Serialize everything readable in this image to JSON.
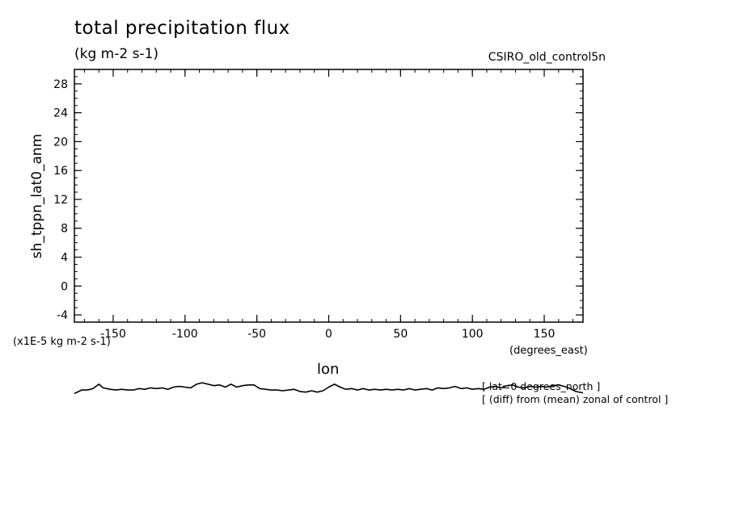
{
  "chart_data": {
    "type": "line",
    "title": "total precipitation flux",
    "units": "(kg m-2 s-1)",
    "dataset": "CSIRO_old_control5n",
    "ylabel": "sh_tppn_lat0_anm",
    "y_scale_note": "(x1E-5 kg m-2 s-1)",
    "xlabel": "lon",
    "x_units": "(degrees_east)",
    "notes": [
      "[ lat=0 degrees_north ]",
      "[ (diff) from (mean) zonal of control ]"
    ],
    "xlim": [
      -177,
      177
    ],
    "ylim": [
      -5,
      30
    ],
    "x_ticks": [
      -150,
      -100,
      -50,
      0,
      50,
      100,
      150
    ],
    "x_tick_labels": [
      "-150",
      "-100",
      "-50",
      "0",
      "50",
      "100",
      "150"
    ],
    "y_ticks": [
      -4,
      0,
      4,
      8,
      12,
      16,
      20,
      24,
      28
    ],
    "y_tick_labels": [
      "-4",
      "0",
      "4",
      "8",
      "12",
      "16",
      "20",
      "24",
      "28"
    ],
    "grid": false,
    "series": [
      {
        "x": [
          -177,
          -172,
          -168,
          -164,
          -160,
          -157,
          -152,
          -148,
          -144,
          -140,
          -136,
          -132,
          -128,
          -124,
          -120,
          -116,
          -112,
          -108,
          -104,
          -100,
          -96,
          -92,
          -88,
          -84,
          -80,
          -76,
          -72,
          -68,
          -64,
          -60,
          -56,
          -52,
          -48,
          -44,
          -40,
          -36,
          -32,
          -28,
          -24,
          -20,
          -16,
          -12,
          -8,
          -4,
          0,
          4,
          8,
          12,
          16,
          20,
          24,
          28,
          32,
          36,
          40,
          44,
          48,
          52,
          56,
          60,
          64,
          68,
          72,
          76,
          80,
          84,
          88,
          92,
          96,
          100,
          104,
          108,
          112,
          116,
          120,
          124,
          128,
          132,
          136,
          140,
          144,
          148,
          152,
          156,
          160,
          164,
          168,
          172,
          177
        ],
        "y": [
          -14.9,
          -14.4,
          -14.4,
          -14.2,
          -13.6,
          -14.1,
          -14.3,
          -14.4,
          -14.3,
          -14.4,
          -14.4,
          -14.2,
          -14.3,
          -14.1,
          -14.2,
          -14.1,
          -14.3,
          -14.0,
          -13.9,
          -14.0,
          -14.1,
          -13.6,
          -13.4,
          -13.6,
          -13.8,
          -13.7,
          -14.0,
          -13.6,
          -14.0,
          -13.8,
          -13.7,
          -13.7,
          -14.2,
          -14.3,
          -14.4,
          -14.4,
          -14.5,
          -14.4,
          -14.3,
          -14.6,
          -14.7,
          -14.5,
          -14.7,
          -14.5,
          -14.0,
          -13.6,
          -14.0,
          -14.3,
          -14.2,
          -14.4,
          -14.2,
          -14.4,
          -14.3,
          -14.4,
          -14.3,
          -14.4,
          -14.3,
          -14.4,
          -14.2,
          -14.4,
          -14.3,
          -14.2,
          -14.4,
          -14.1,
          -14.2,
          -14.1,
          -13.9,
          -14.2,
          -14.1,
          -14.3,
          -14.2,
          -14.3,
          -14.0,
          -13.9,
          -14.1,
          -13.8,
          -13.7,
          -14.0,
          -14.1,
          -13.9,
          -14.0,
          -13.9,
          -14.0,
          -13.8,
          -13.7,
          -13.9,
          -14.2,
          -14.6,
          -14.8
        ]
      }
    ]
  }
}
